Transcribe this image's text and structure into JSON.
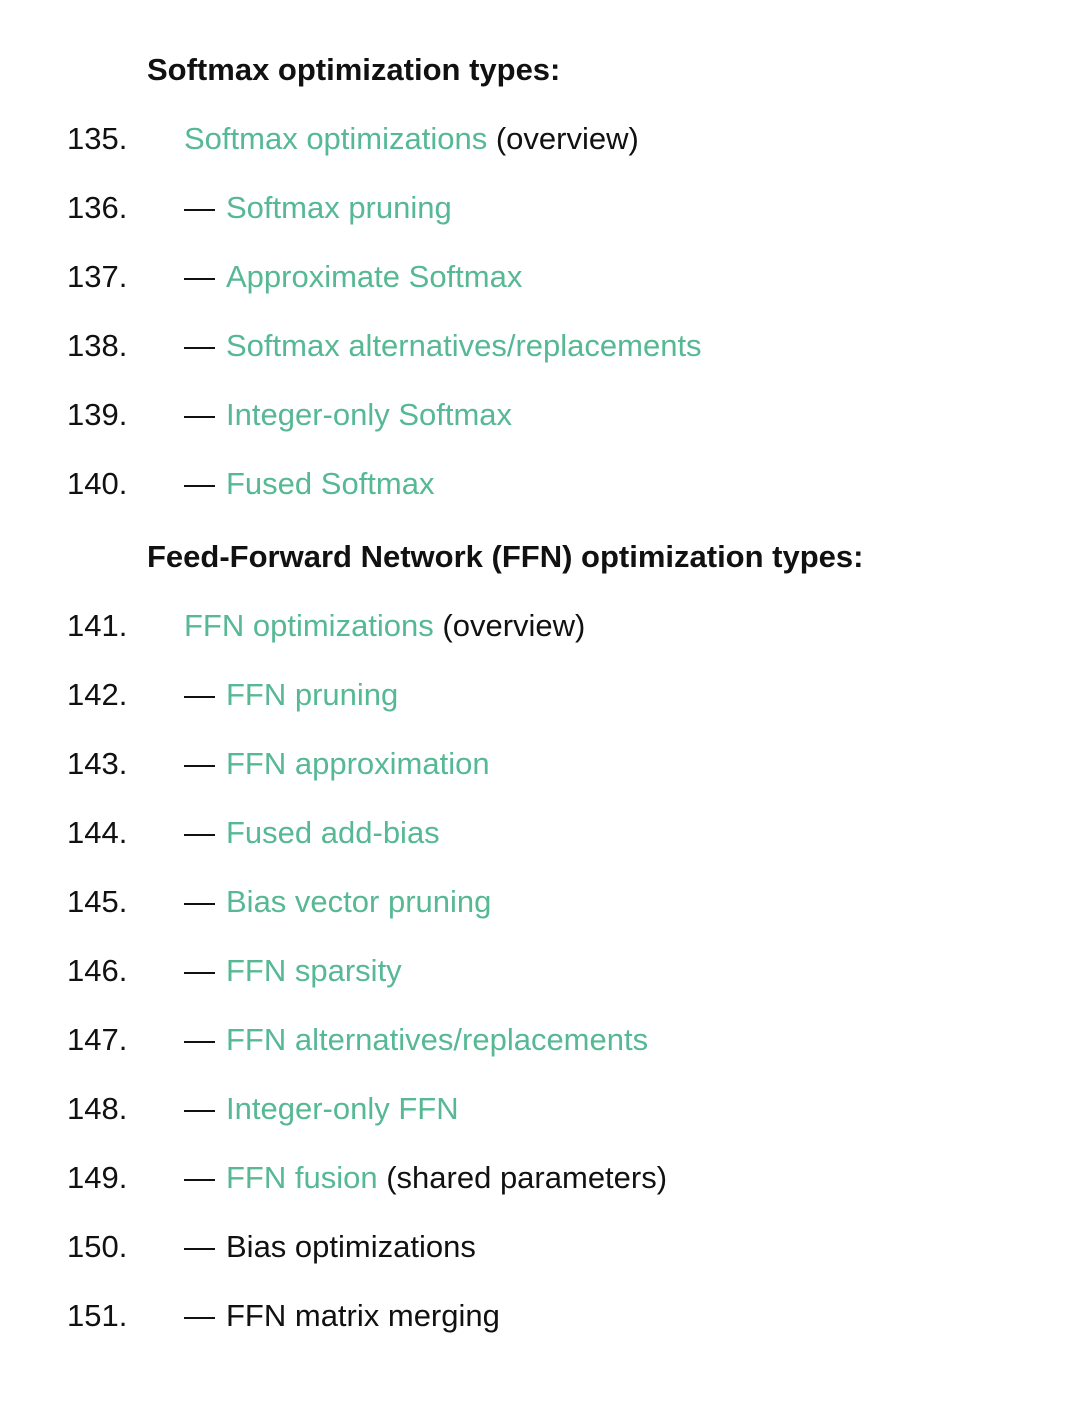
{
  "page": {
    "background": "#ffffff",
    "text_color": "#111111",
    "link_color": "#56b894"
  },
  "sections": [
    {
      "heading": "Softmax optimization types:",
      "items": [
        {
          "number": "135.",
          "dash": "",
          "link": "Softmax optimizations",
          "suffix": " (overview)"
        },
        {
          "number": "136.",
          "dash": "—",
          "link": "Softmax pruning",
          "suffix": ""
        },
        {
          "number": "137.",
          "dash": "—",
          "link": "Approximate Softmax",
          "suffix": ""
        },
        {
          "number": "138.",
          "dash": "—",
          "link": "Softmax alternatives/replacements",
          "suffix": ""
        },
        {
          "number": "139.",
          "dash": "—",
          "link": "Integer-only Softmax",
          "suffix": ""
        },
        {
          "number": "140.",
          "dash": "—",
          "link": "Fused Softmax",
          "suffix": ""
        }
      ]
    },
    {
      "heading": "Feed-Forward Network (FFN) optimization types:",
      "items": [
        {
          "number": "141.",
          "dash": "",
          "link": "FFN optimizations",
          "suffix": " (overview)"
        },
        {
          "number": "142.",
          "dash": "—",
          "link": "FFN pruning",
          "suffix": ""
        },
        {
          "number": "143.",
          "dash": "—",
          "link": "FFN approximation",
          "suffix": ""
        },
        {
          "number": "144.",
          "dash": "—",
          "link": "Fused add-bias",
          "suffix": ""
        },
        {
          "number": "145.",
          "dash": "—",
          "link": "Bias vector pruning",
          "suffix": ""
        },
        {
          "number": "146.",
          "dash": "—",
          "link": "FFN sparsity",
          "suffix": ""
        },
        {
          "number": "147.",
          "dash": "—",
          "link": "FFN alternatives/replacements",
          "suffix": ""
        },
        {
          "number": "148.",
          "dash": "—",
          "link": "Integer-only FFN",
          "suffix": ""
        },
        {
          "number": "149.",
          "dash": "—",
          "link": "FFN fusion",
          "suffix": " (shared parameters)"
        },
        {
          "number": "150.",
          "dash": "—",
          "link": "",
          "suffix": "Bias optimizations"
        },
        {
          "number": "151.",
          "dash": "—",
          "link": "",
          "suffix": "FFN matrix merging"
        }
      ]
    }
  ]
}
